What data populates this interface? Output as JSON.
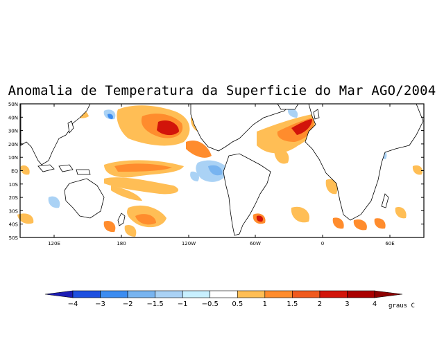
{
  "title": "Anomalia de Temperatura da Superficie do Mar AGO/2004",
  "lat_labels": [
    "50N",
    "40N",
    "30N",
    "20N",
    "10N",
    "EQ",
    "10S",
    "20S",
    "30S",
    "40S",
    "50S"
  ],
  "lon_labels": [
    "120E",
    "180",
    "120W",
    "60W",
    "0",
    "60E"
  ],
  "colorbar": {
    "labels": [
      "-4",
      "-3",
      "-2",
      "-1.5",
      "-1",
      "-0.5",
      "0.5",
      "1",
      "1.5",
      "2",
      "3",
      "4"
    ],
    "colors": [
      "#1c1cb4",
      "#1e50e0",
      "#3c8cf0",
      "#78b4f0",
      "#aad2f5",
      "#c8f0ff",
      "#ffffff",
      "#ffbe55",
      "#ff8c2d",
      "#f05a1e",
      "#d2140a",
      "#aa0000",
      "#8c0000"
    ],
    "units": "graus C"
  },
  "colors": {
    "land_outline": "#000000",
    "frame": "#000000"
  }
}
